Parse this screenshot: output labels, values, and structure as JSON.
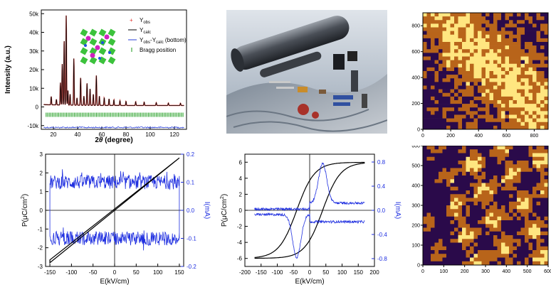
{
  "chart_data": [
    {
      "type": "line",
      "id": "xrd",
      "xlabel_main": "2",
      "xlabel_theta": "θ",
      "xlabel_rest": " (degree)",
      "ylabel": "Intensity (a.u.)",
      "xlim": [
        10,
        130
      ],
      "ylim": [
        -12000,
        52000
      ],
      "xticks": [
        "20",
        "40",
        "60",
        "80",
        "100",
        "120"
      ],
      "yticks": [
        "-10k",
        "0",
        "10k",
        "20k",
        "30k",
        "40k",
        "50k"
      ],
      "legend": [
        {
          "label": "Y",
          "sub": "obs",
          "tail": ""
        },
        {
          "label": "Y",
          "sub": "calc",
          "tail": ""
        },
        {
          "label": "Y",
          "sub": "obs",
          "tail": "-Y",
          "sub2": "calc",
          "tail2": " (bottom)"
        },
        {
          "label": "Bragg position",
          "sub": "",
          "tail": ""
        }
      ],
      "peaks": [
        {
          "x": 18.2,
          "y": 4500
        },
        {
          "x": 22.5,
          "y": 3000
        },
        {
          "x": 25.8,
          "y": 12000
        },
        {
          "x": 27.3,
          "y": 22000
        },
        {
          "x": 28.9,
          "y": 35000
        },
        {
          "x": 30.6,
          "y": 48000
        },
        {
          "x": 32.0,
          "y": 8000
        },
        {
          "x": 33.8,
          "y": 6000
        },
        {
          "x": 36.9,
          "y": 25000
        },
        {
          "x": 39.5,
          "y": 4000
        },
        {
          "x": 42.5,
          "y": 15000
        },
        {
          "x": 45.2,
          "y": 5000
        },
        {
          "x": 47.8,
          "y": 12000
        },
        {
          "x": 50.3,
          "y": 9000
        },
        {
          "x": 53.0,
          "y": 6000
        },
        {
          "x": 55.5,
          "y": 16000
        },
        {
          "x": 58.0,
          "y": 5000
        },
        {
          "x": 62.0,
          "y": 4000
        },
        {
          "x": 66.0,
          "y": 3500
        },
        {
          "x": 70.0,
          "y": 3000
        },
        {
          "x": 75.0,
          "y": 2500
        },
        {
          "x": 80.0,
          "y": 2200
        },
        {
          "x": 88.0,
          "y": 2000
        },
        {
          "x": 95.0,
          "y": 1800
        },
        {
          "x": 105.0,
          "y": 1500
        },
        {
          "x": 115.0,
          "y": 1300
        },
        {
          "x": 125.0,
          "y": 1200
        }
      ],
      "colors": {
        "obs": "#e0302a",
        "calc": "#000000",
        "diff": "#2a3fd6",
        "bragg": "#1a9a1a"
      }
    },
    {
      "type": "line",
      "id": "pe1",
      "xlabel": "E(kV/cm)",
      "ylabel_left": "P(μC/cm",
      "ylabel_left_sup": "2",
      "ylabel_left_tail": ")",
      "ylabel_right": "I(mA)",
      "xlim": [
        -160,
        160
      ],
      "ylim_left": [
        -3,
        3
      ],
      "ylim_right": [
        -0.2,
        0.2
      ],
      "xticks": [
        "-150",
        "-100",
        "-50",
        "0",
        "50",
        "100",
        "150"
      ],
      "xtick_values": [
        -150,
        -100,
        -50,
        0,
        50,
        100,
        150
      ],
      "yticks_left": [
        "-3",
        "-2",
        "-1",
        "0",
        "1",
        "2",
        "3"
      ],
      "yticks_left_values": [
        -3,
        -2,
        -1,
        0,
        1,
        2,
        3
      ],
      "yticks_right": [
        "-0.2",
        "-0.1",
        "0.0",
        "0.1",
        "0.2"
      ],
      "yticks_right_values": [
        -0.2,
        -0.1,
        0.0,
        0.1,
        0.2
      ],
      "series": [
        {
          "role": "P-E loop",
          "color": "#000000",
          "points_up": [
            [
              -150,
              -2.8
            ],
            [
              150,
              2.8
            ]
          ],
          "points_down": [
            [
              150,
              2.7
            ],
            [
              -150,
              -2.65
            ]
          ]
        },
        {
          "role": "I-E current",
          "color": "#1f2fe0",
          "upper": 0.1,
          "lower": -0.1,
          "xmin": -150,
          "xmax": 150
        }
      ]
    },
    {
      "type": "line",
      "id": "pe2",
      "xlabel": "E(kV/cm)",
      "ylabel_left": "P(μC/cm",
      "ylabel_left_sup": "2",
      "ylabel_left_tail": ")",
      "ylabel_right": "I(mA)",
      "xlim": [
        -200,
        200
      ],
      "ylim_left": [
        -7,
        7
      ],
      "ylim_right": [
        -0.93,
        0.93
      ],
      "xticks": [
        "-200",
        "-150",
        "-100",
        "-50",
        "0",
        "50",
        "100",
        "150",
        "200"
      ],
      "xtick_values": [
        -200,
        -150,
        -100,
        -50,
        0,
        50,
        100,
        150,
        200
      ],
      "yticks_left": [
        "-6",
        "-4",
        "-2",
        "0",
        "2",
        "4",
        "6"
      ],
      "yticks_left_values": [
        -6,
        -4,
        -2,
        0,
        2,
        4,
        6
      ],
      "yticks_right": [
        "-0.8",
        "-0.4",
        "0.0",
        "0.4",
        "0.8"
      ],
      "yticks_right_values": [
        -0.8,
        -0.4,
        0.0,
        0.4,
        0.8
      ],
      "series": [
        {
          "role": "P-E loop",
          "color": "#000000",
          "Emax": 170,
          "Pmax": 6.3,
          "Pr": 2.3,
          "Ec": 40
        },
        {
          "role": "I-E current",
          "color": "#1f2fe0",
          "peak_pos": [
            40,
            0.78
          ],
          "peak_neg": [
            -40,
            -0.78
          ],
          "baseline_hi": 0.12,
          "baseline_lo": -0.07,
          "xmin": -170,
          "xmax": 170
        }
      ]
    },
    {
      "type": "heatmap",
      "id": "afm1",
      "xticks": [
        "0",
        "200",
        "400",
        "600",
        "800"
      ],
      "xtick_values": [
        0,
        200,
        400,
        600,
        800
      ],
      "yticks": [
        "0",
        "200",
        "400",
        "600",
        "800"
      ],
      "ytick_values": [
        0,
        200,
        400,
        600,
        800
      ],
      "xlim": [
        0,
        900
      ],
      "ylim": [
        0,
        900
      ],
      "colors": {
        "dark": "#2a0a4a",
        "mid": "#b8641a",
        "bright": "#ffe680"
      }
    },
    {
      "type": "heatmap",
      "id": "afm2",
      "xticks": [
        "0",
        "100",
        "200",
        "300",
        "400",
        "500",
        "600"
      ],
      "xtick_values": [
        0,
        100,
        200,
        300,
        400,
        500,
        600
      ],
      "yticks": [
        "0",
        "100",
        "200",
        "300",
        "400",
        "500",
        "600"
      ],
      "ytick_values": [
        0,
        100,
        200,
        300,
        400,
        500,
        600
      ],
      "xlim": [
        0,
        600
      ],
      "ylim": [
        0,
        600
      ],
      "colors": {
        "dark": "#2a0a4a",
        "mid": "#b8641a",
        "bright": "#ffe680"
      }
    }
  ]
}
